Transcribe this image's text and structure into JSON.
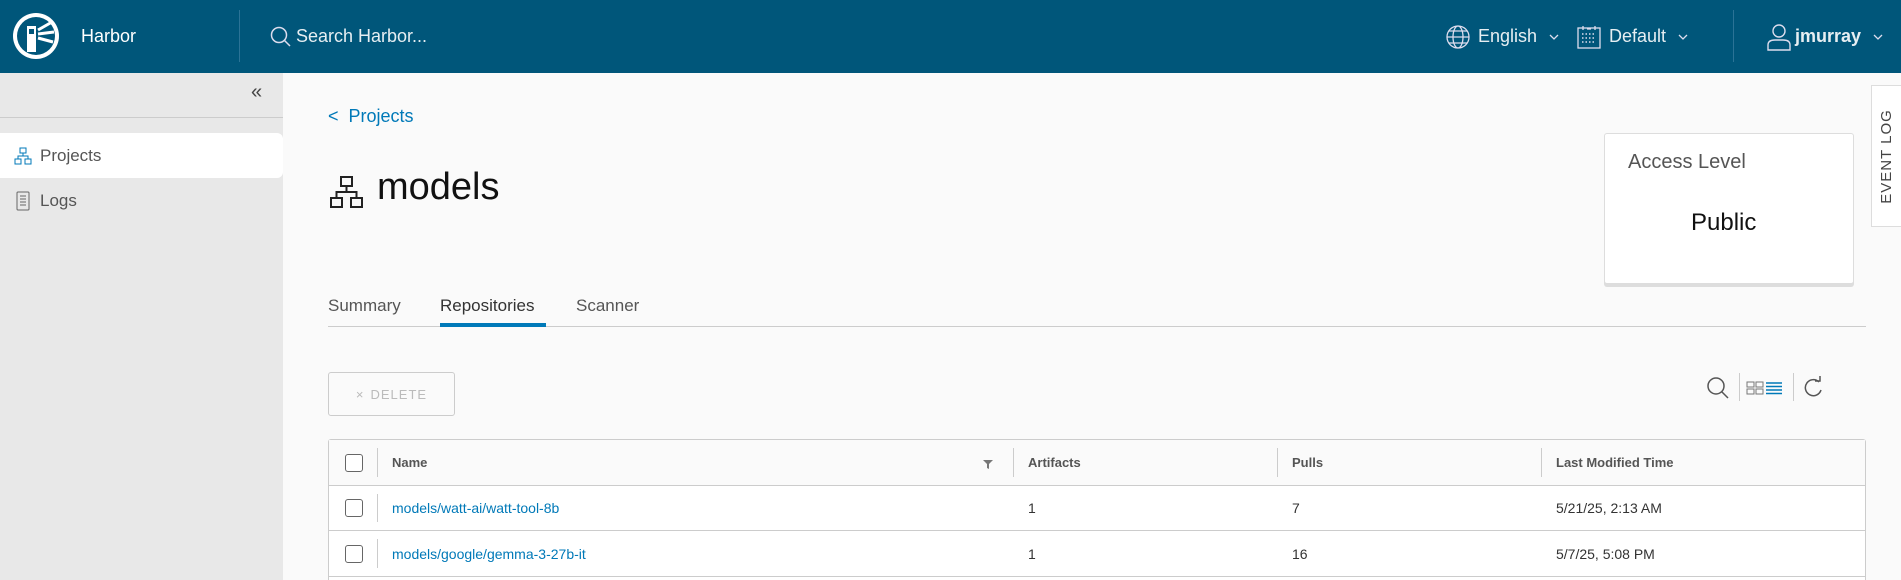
{
  "header": {
    "app_name": "Harbor",
    "search_placeholder": "Search Harbor...",
    "language": "English",
    "date_format": "Default",
    "user": "jmurray"
  },
  "sidebar": {
    "items": [
      {
        "label": "Projects",
        "icon": "projects-icon",
        "active": true
      },
      {
        "label": "Logs",
        "icon": "logs-icon",
        "active": false
      }
    ]
  },
  "breadcrumb": {
    "back": "<",
    "label": "Projects"
  },
  "project": {
    "name": "models"
  },
  "access_card": {
    "title": "Access Level",
    "value": "Public"
  },
  "event_log": "EVENT LOG",
  "tabs": [
    {
      "label": "Summary"
    },
    {
      "label": "Repositories",
      "active": true
    },
    {
      "label": "Scanner"
    }
  ],
  "toolbar": {
    "delete_label": "DELETE",
    "delete_icon": "×"
  },
  "table": {
    "columns": [
      "Name",
      "Artifacts",
      "Pulls",
      "Last Modified Time"
    ],
    "rows": [
      {
        "name": "models/watt-ai/watt-tool-8b",
        "artifacts": "1",
        "pulls": "7",
        "modified": "5/21/25, 2:13 AM"
      },
      {
        "name": "models/google/gemma-3-27b-it",
        "artifacts": "1",
        "pulls": "16",
        "modified": "5/7/25, 5:08 PM"
      }
    ]
  },
  "colors": {
    "header_bg": "#00567a",
    "link": "#0079b8",
    "sidebar_bg": "#e8e8e8"
  }
}
